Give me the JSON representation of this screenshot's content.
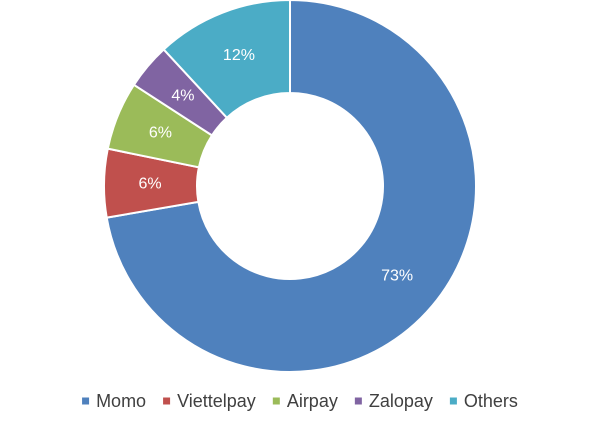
{
  "chart_data": {
    "type": "pie",
    "variant": "donut",
    "categories": [
      "Momo",
      "Viettelpay",
      "Airpay",
      "Zalopay",
      "Others"
    ],
    "values": [
      73,
      6,
      6,
      4,
      12
    ],
    "value_labels": [
      "73%",
      "6%",
      "6%",
      "4%",
      "12%"
    ],
    "colors": [
      "#4F81BD",
      "#C0504D",
      "#9BBB59",
      "#8064A2",
      "#4BACC6"
    ],
    "start": "12 o'clock, clockwise",
    "legend": {
      "position": "bottom",
      "items": [
        {
          "label": "Momo",
          "color": "#4F81BD"
        },
        {
          "label": "Viettelpay",
          "color": "#C0504D"
        },
        {
          "label": "Airpay",
          "color": "#9BBB59"
        },
        {
          "label": "Zalopay",
          "color": "#8064A2"
        },
        {
          "label": "Others",
          "color": "#4BACC6"
        }
      ]
    },
    "data_label_color": "#FFFFFF",
    "legend_text_color": "#404040",
    "slice_border_color": "#FFFFFF"
  }
}
